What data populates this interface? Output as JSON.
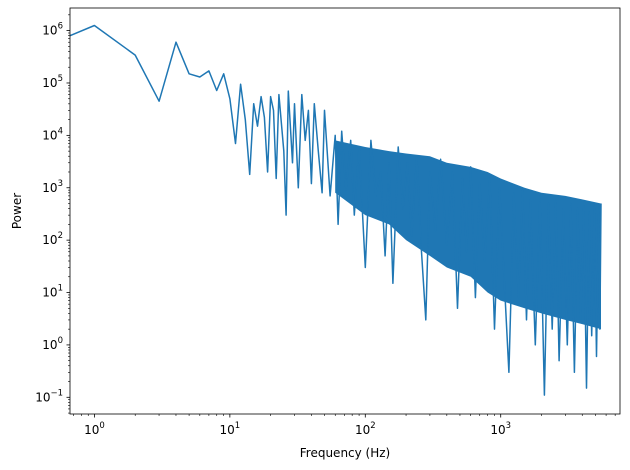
{
  "chart_data": {
    "type": "line",
    "title": "",
    "xlabel": "Frequency (Hz)",
    "ylabel": "Power",
    "xscale": "log",
    "yscale": "log",
    "xlim": [
      0.66,
      7600
    ],
    "ylim": [
      0.048,
      2700000
    ],
    "grid": false,
    "legend": "none",
    "line_color": "#1f77b4",
    "x_ticks": [
      {
        "value": 1,
        "base": "10",
        "exp": "0"
      },
      {
        "value": 10,
        "base": "10",
        "exp": "1"
      },
      {
        "value": 100,
        "base": "10",
        "exp": "2"
      },
      {
        "value": 1000,
        "base": "10",
        "exp": "3"
      }
    ],
    "y_ticks": [
      {
        "value": 0.1,
        "base": "10",
        "exp": "−1"
      },
      {
        "value": 1,
        "base": "10",
        "exp": "0"
      },
      {
        "value": 10,
        "base": "10",
        "exp": "1"
      },
      {
        "value": 100,
        "base": "10",
        "exp": "2"
      },
      {
        "value": 1000,
        "base": "10",
        "exp": "3"
      },
      {
        "value": 10000,
        "base": "10",
        "exp": "4"
      },
      {
        "value": 100000,
        "base": "10",
        "exp": "5"
      },
      {
        "value": 1000000,
        "base": "10",
        "exp": "6"
      }
    ],
    "series": [
      {
        "points": [
          [
            0.66,
            800000
          ],
          [
            1,
            1250000
          ],
          [
            2,
            340000
          ],
          [
            3,
            45000
          ],
          [
            4,
            600000
          ],
          [
            5,
            150000
          ],
          [
            6,
            130000
          ],
          [
            7,
            170000
          ],
          [
            8,
            72000
          ],
          [
            9,
            150000
          ],
          [
            10,
            50000
          ],
          [
            11,
            7000
          ],
          [
            12,
            95000
          ],
          [
            13,
            20000
          ],
          [
            14,
            1800
          ],
          [
            15,
            40000
          ],
          [
            16,
            15000
          ],
          [
            17,
            55000
          ],
          [
            18,
            22000
          ],
          [
            19,
            2000
          ],
          [
            20,
            55000
          ],
          [
            21,
            30000
          ],
          [
            22,
            1500
          ],
          [
            23,
            60000
          ],
          [
            25,
            5000
          ],
          [
            26,
            300
          ],
          [
            27,
            70000
          ],
          [
            29,
            3000
          ],
          [
            30,
            40000
          ],
          [
            32,
            1000
          ],
          [
            34,
            60000
          ],
          [
            36,
            8000
          ],
          [
            38,
            30000
          ],
          [
            40,
            1200
          ],
          [
            42,
            40000
          ],
          [
            45,
            5000
          ],
          [
            48,
            800
          ],
          [
            50,
            30000
          ],
          [
            55,
            700
          ],
          [
            60,
            10000
          ],
          [
            63,
            200
          ],
          [
            67,
            12000
          ],
          [
            72,
            900
          ],
          [
            78,
            8000
          ],
          [
            83,
            300
          ],
          [
            90,
            6000
          ],
          [
            100,
            30
          ],
          [
            110,
            8000
          ],
          [
            120,
            700
          ],
          [
            130,
            2000
          ],
          [
            140,
            50
          ],
          [
            150,
            3000
          ],
          [
            160,
            15
          ],
          [
            175,
            6000
          ],
          [
            190,
            400
          ],
          [
            205,
            3000
          ],
          [
            220,
            120
          ],
          [
            240,
            4000
          ],
          [
            260,
            60
          ],
          [
            280,
            3
          ],
          [
            300,
            2000
          ],
          [
            330,
            150
          ],
          [
            360,
            3500
          ],
          [
            400,
            80
          ],
          [
            440,
            2000
          ],
          [
            480,
            5
          ],
          [
            520,
            1500
          ],
          [
            560,
            60
          ],
          [
            600,
            2500
          ],
          [
            650,
            8
          ],
          [
            700,
            1200
          ],
          [
            760,
            40
          ],
          [
            830,
            1500
          ],
          [
            900,
            2
          ],
          [
            980,
            1000
          ],
          [
            1050,
            30
          ],
          [
            1150,
            0.3
          ],
          [
            1250,
            800
          ],
          [
            1350,
            8
          ],
          [
            1450,
            900
          ],
          [
            1550,
            3
          ],
          [
            1650,
            600
          ],
          [
            1800,
            1
          ],
          [
            1950,
            700
          ],
          [
            2100,
            0.11
          ],
          [
            2250,
            500
          ],
          [
            2400,
            2
          ],
          [
            2550,
            600
          ],
          [
            2700,
            0.5
          ],
          [
            2900,
            400
          ],
          [
            3100,
            1
          ],
          [
            3300,
            500
          ],
          [
            3500,
            0.3
          ],
          [
            3700,
            400
          ],
          [
            3900,
            3
          ],
          [
            4100,
            450
          ],
          [
            4300,
            0.15
          ],
          [
            4500,
            350
          ],
          [
            4700,
            1.5
          ],
          [
            4900,
            500
          ],
          [
            5100,
            0.6
          ],
          [
            5300,
            400
          ],
          [
            5400,
            2
          ],
          [
            5500,
            500
          ]
        ]
      }
    ],
    "fill_band": {
      "x": [
        60,
        100,
        150,
        200,
        300,
        400,
        600,
        800,
        1000,
        1500,
        2000,
        3000,
        4000,
        5500
      ],
      "upper": [
        8000,
        6000,
        5000,
        4500,
        4000,
        3000,
        2500,
        2000,
        1500,
        1000,
        800,
        700,
        600,
        500
      ],
      "lower": [
        800,
        300,
        200,
        100,
        50,
        30,
        20,
        10,
        7,
        5,
        4,
        3,
        2.5,
        2
      ]
    }
  }
}
